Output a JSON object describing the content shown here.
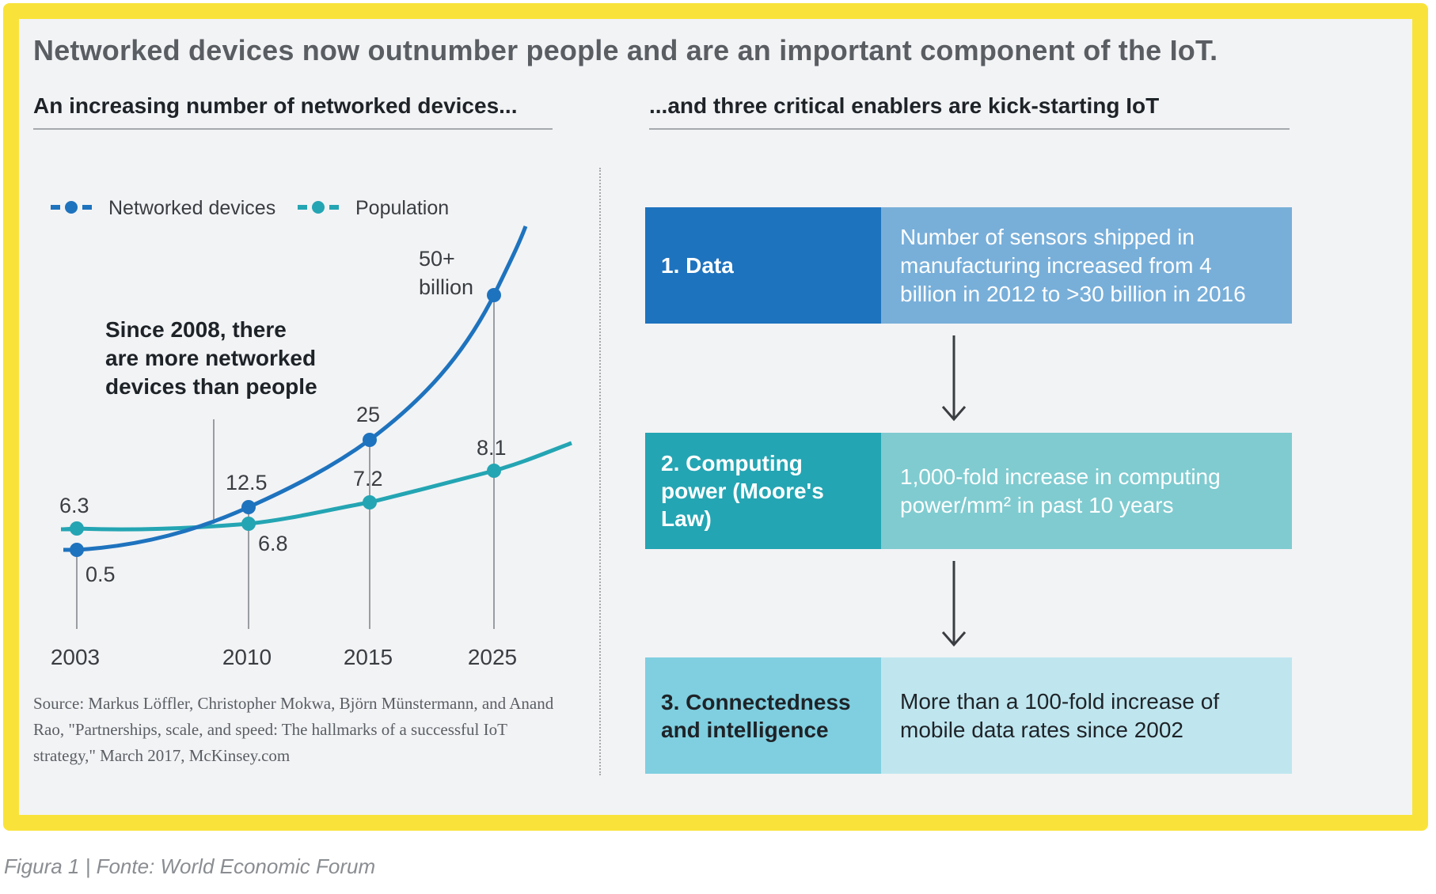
{
  "title": "Networked devices now outnumber people and are an important component of the IoT.",
  "left_subtitle": "An increasing number of networked devices...",
  "right_subtitle": "...and three critical enablers are kick-starting IoT",
  "chart_data": {
    "type": "line",
    "x": [
      "2003",
      "2010",
      "2015",
      "2025"
    ],
    "series": [
      {
        "name": "Networked devices",
        "values": [
          0.5,
          12.5,
          25,
          50
        ],
        "labels": [
          "0.5",
          "12.5",
          "25",
          "50+ billion"
        ],
        "color": "#1e73be"
      },
      {
        "name": "Population",
        "values": [
          6.3,
          6.8,
          7.2,
          8.1
        ],
        "labels": [
          "6.3",
          "6.8",
          "7.2",
          "8.1"
        ],
        "color": "#24a5b3"
      }
    ],
    "value_label_top": "50+",
    "value_label_bottom": "billion",
    "annotation": [
      "Since 2008, there",
      "are more networked",
      "devices than people"
    ]
  },
  "source": "Source: Markus Löffler, Christopher Mokwa, Björn Münstermann, and Anand Rao, \"Partnerships, scale, and speed: The hallmarks of a successful IoT strategy,\" March 2017, McKinsey.com",
  "enablers": [
    {
      "label": "1. Data",
      "desc": "Number of sensors shipped in manufacturing increased from 4 billion in 2012 to >30 billion in 2016",
      "label_bg": "#1e73be",
      "desc_bg": "#78afd9",
      "label_color": "#ffffff",
      "desc_color": "#ffffff"
    },
    {
      "label": "2. Computing power (Moore's Law)",
      "desc": "1,000-fold increase in computing power/mm² in past 10 years",
      "label_bg": "#24a5b3",
      "desc_bg": "#7fcbd0",
      "label_color": "#ffffff",
      "desc_color": "#ffffff"
    },
    {
      "label": "3. Connectedness and intelligence",
      "desc": "More than a 100-fold increase of mobile data rates since 2002",
      "label_bg": "#7fcfe0",
      "desc_bg": "#bfe6ef",
      "label_color": "#1e2328",
      "desc_color": "#1e2328"
    }
  ],
  "caption": "Figura 1 | Fonte: World Economic Forum"
}
